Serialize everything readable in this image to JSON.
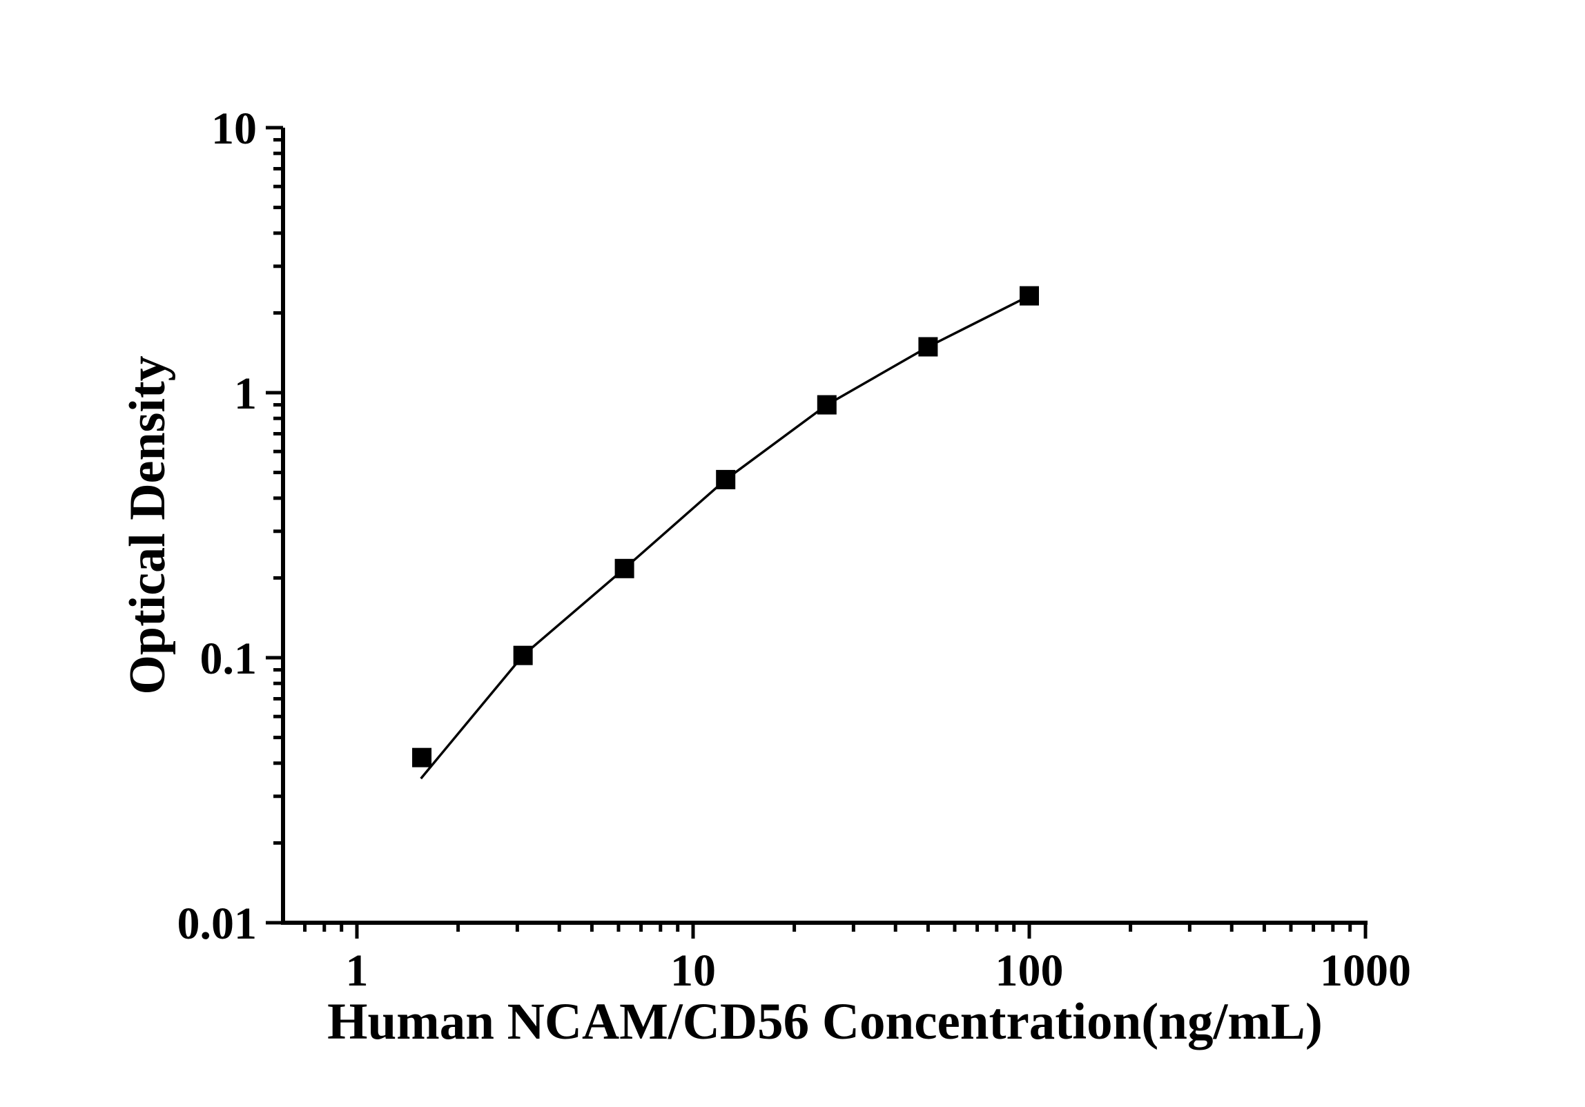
{
  "figure": {
    "background_color": "#ffffff",
    "ink_color": "#000000"
  },
  "chart_data": {
    "type": "scatter",
    "title": "",
    "xlabel": "Human NCAM/CD56 Concentration(ng/mL)",
    "ylabel": "Optical Density",
    "x_scale": "log",
    "y_scale": "log",
    "x_range": [
      0.6,
      1000
    ],
    "y_range": [
      0.01,
      10
    ],
    "x_ticks": [
      1,
      10,
      100,
      1000
    ],
    "x_tick_labels": [
      "1",
      "10",
      "100",
      "1000"
    ],
    "y_ticks": [
      0.01,
      0.1,
      1,
      10
    ],
    "y_tick_labels": [
      "0.01",
      "0.1",
      "1",
      "10"
    ],
    "grid": false,
    "legend": false,
    "marker_shape": "filled-square",
    "series": [
      {
        "name": "standard-points",
        "x": [
          1.56,
          3.12,
          6.25,
          12.5,
          25,
          50,
          100
        ],
        "y": [
          0.042,
          0.102,
          0.217,
          0.47,
          0.9,
          1.49,
          2.32
        ]
      }
    ],
    "fit_curve": {
      "name": "fitted-line",
      "x": [
        1.55,
        3.12,
        6.25,
        12.5,
        25,
        50,
        100
      ],
      "y": [
        0.035,
        0.102,
        0.217,
        0.47,
        0.9,
        1.49,
        2.32
      ]
    }
  }
}
